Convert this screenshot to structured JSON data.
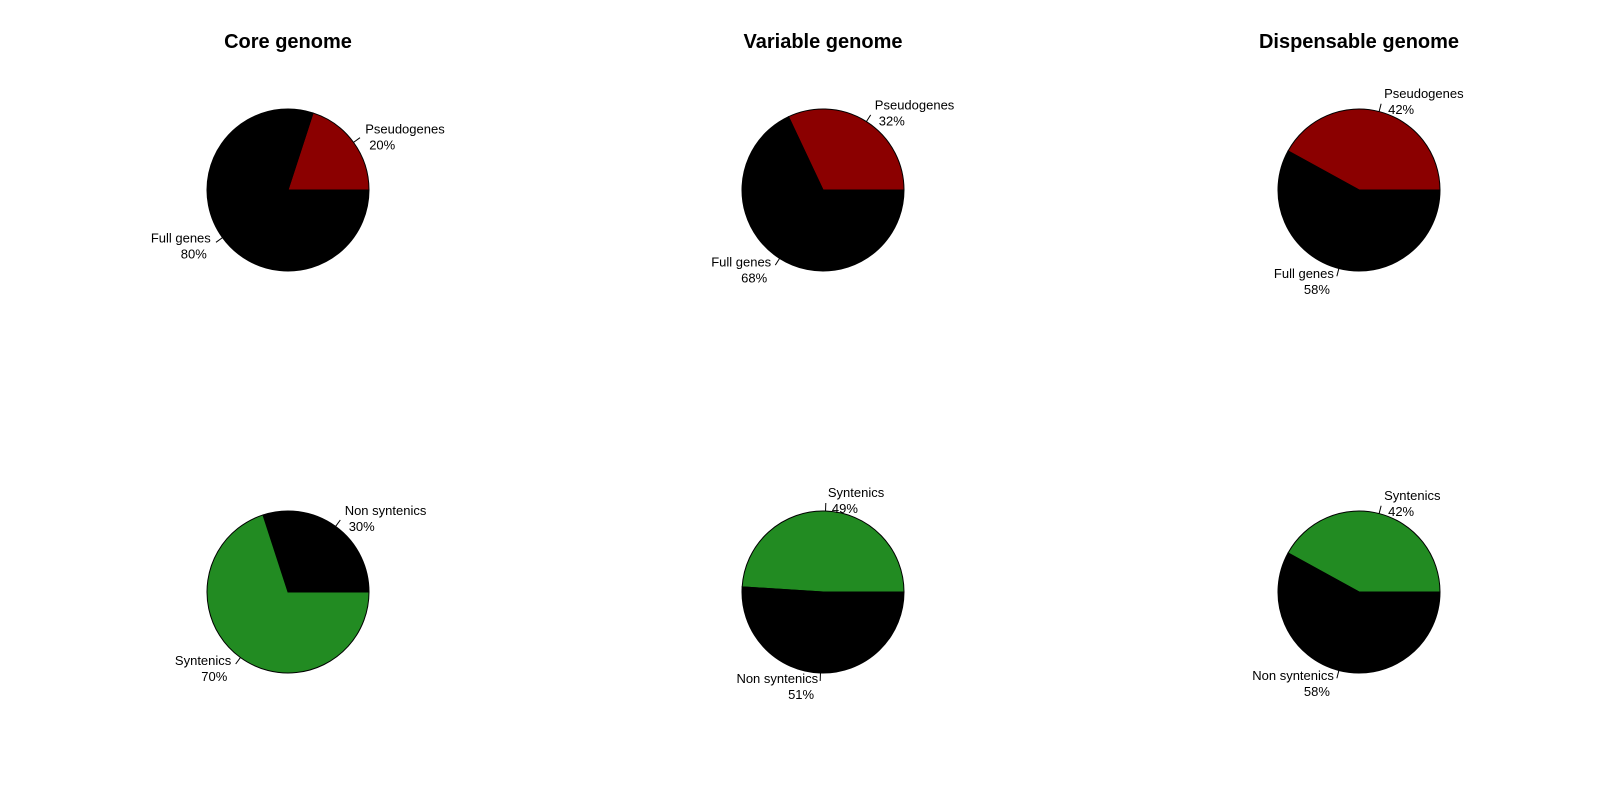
{
  "titles": [
    "Core genome",
    "Variable genome",
    "Dispensable genome"
  ],
  "colors": {
    "pseudogenes": "#8b0000",
    "full_genes": "#000000",
    "syntenics": "#228b22",
    "non_syntenics": "#000000"
  },
  "chart_data": [
    {
      "type": "pie",
      "title": "Core genome",
      "slices": [
        {
          "label": "Pseudogenes",
          "pct_label": "20%",
          "value": 20,
          "color": "#8b0000"
        },
        {
          "label": "Full genes",
          "pct_label": "80%",
          "value": 80,
          "color": "#000000"
        }
      ]
    },
    {
      "type": "pie",
      "title": "Variable genome",
      "slices": [
        {
          "label": "Pseudogenes",
          "pct_label": "32%",
          "value": 32,
          "color": "#8b0000"
        },
        {
          "label": "Full genes",
          "pct_label": "68%",
          "value": 68,
          "color": "#000000"
        }
      ]
    },
    {
      "type": "pie",
      "title": "Dispensable genome",
      "slices": [
        {
          "label": "Pseudogenes",
          "pct_label": "42%",
          "value": 42,
          "color": "#8b0000"
        },
        {
          "label": "Full genes",
          "pct_label": "58%",
          "value": 58,
          "color": "#000000"
        }
      ]
    },
    {
      "type": "pie",
      "title": "",
      "slices": [
        {
          "label": "Non syntenics",
          "pct_label": "30%",
          "value": 30,
          "color": "#000000"
        },
        {
          "label": "Syntenics",
          "pct_label": "70%",
          "value": 70,
          "color": "#228b22"
        }
      ]
    },
    {
      "type": "pie",
      "title": "",
      "slices": [
        {
          "label": "Syntenics",
          "pct_label": "49%",
          "value": 49,
          "color": "#228b22"
        },
        {
          "label": "Non syntenics",
          "pct_label": "51%",
          "value": 51,
          "color": "#000000"
        }
      ]
    },
    {
      "type": "pie",
      "title": "",
      "slices": [
        {
          "label": "Syntenics",
          "pct_label": "42%",
          "value": 42,
          "color": "#228b22"
        },
        {
          "label": "Non syntenics",
          "pct_label": "58%",
          "value": 58,
          "color": "#000000"
        }
      ]
    }
  ]
}
